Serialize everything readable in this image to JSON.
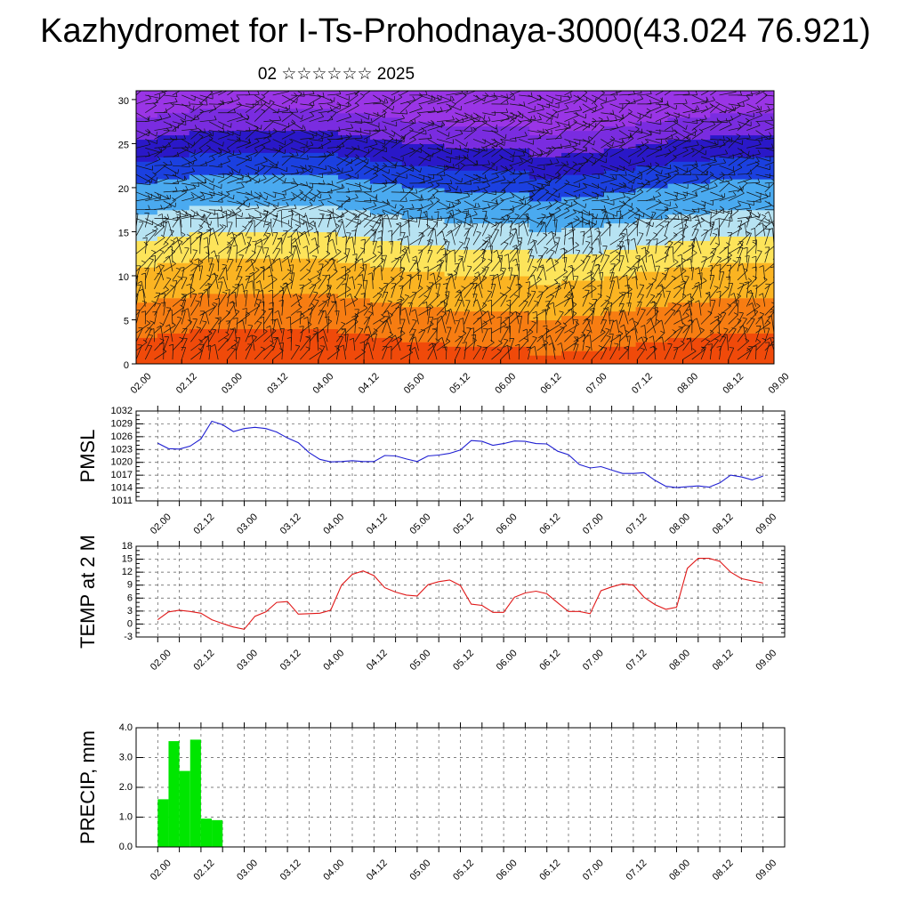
{
  "title": "Kazhydromet for I-Ts-Prohodnaya-3000(43.024 76.921)",
  "subtitle": "02 ☆☆☆☆☆☆ 2025",
  "x_tick_labels": [
    "02.00",
    "02.12",
    "03.00",
    "03.12",
    "04.00",
    "04.12",
    "05.00",
    "05.12",
    "06.00",
    "06.12",
    "07.00",
    "07.12",
    "08.00",
    "08.12",
    "09.00"
  ],
  "chart_data": [
    {
      "type": "heatmap",
      "title": "",
      "xlabel": "",
      "ylabel": "",
      "yticks": [
        0,
        5,
        10,
        15,
        20,
        25,
        30
      ],
      "ylim": [
        0,
        31
      ],
      "xlim": [
        0,
        168
      ],
      "x_unit": "hours from 02.00",
      "color_by_height_desc": "orange-red near ground, yellow to ~14 km, light blue to ~20 km, blue band ~22-25 km, violet above",
      "palette": [
        "#f04a0a",
        "#f77d12",
        "#fbb422",
        "#fde45a",
        "#b7e3f2",
        "#4aaaf0",
        "#1b40e0",
        "#2a18c8",
        "#7a2ce0",
        "#9a35e6"
      ],
      "wind_barbs": true
    },
    {
      "type": "line",
      "ylabel": "PMSL",
      "color": "#1f1fd2",
      "yticks": [
        1011,
        1014,
        1017,
        1020,
        1023,
        1026,
        1029,
        1032
      ],
      "ylim": [
        1011,
        1032
      ],
      "x": [
        0,
        3,
        6,
        9,
        12,
        15,
        18,
        21,
        24,
        27,
        30,
        33,
        36,
        39,
        42,
        45,
        48,
        51,
        54,
        57,
        60,
        63,
        66,
        69,
        72,
        75,
        78,
        81,
        84,
        87,
        90,
        93,
        96,
        99,
        102,
        105,
        108,
        111,
        114,
        117,
        120,
        123,
        126,
        129,
        132,
        135,
        138,
        141,
        144,
        147,
        150,
        153,
        156,
        159,
        162,
        165,
        168
      ],
      "values": [
        1024.5,
        1023.2,
        1023.1,
        1023.8,
        1025.5,
        1029.6,
        1028.8,
        1027.2,
        1027.9,
        1028.2,
        1027.9,
        1027.1,
        1025.7,
        1024.6,
        1022.3,
        1020.7,
        1020.1,
        1020.2,
        1020.4,
        1020.2,
        1020.2,
        1021.6,
        1021.5,
        1020.8,
        1020.2,
        1021.5,
        1021.7,
        1022.1,
        1022.9,
        1025.1,
        1024.9,
        1024.0,
        1024.4,
        1025.0,
        1024.9,
        1024.4,
        1024.3,
        1022.6,
        1021.8,
        1019.5,
        1018.7,
        1019.0,
        1018.2,
        1017.4,
        1017.4,
        1017.6,
        1015.8,
        1014.4,
        1014.1,
        1014.3,
        1014.5,
        1014.2,
        1015.2,
        1017.0,
        1016.6,
        1015.9,
        1016.8
      ]
    },
    {
      "type": "line",
      "ylabel": "TEMP at 2 M",
      "color": "#e01818",
      "yticks": [
        -3,
        0,
        3,
        6,
        9,
        12,
        15,
        18
      ],
      "ylim": [
        -3,
        18
      ],
      "x": [
        0,
        3,
        6,
        9,
        12,
        15,
        18,
        21,
        24,
        27,
        30,
        33,
        36,
        39,
        42,
        45,
        48,
        51,
        54,
        57,
        60,
        63,
        66,
        69,
        72,
        75,
        78,
        81,
        84,
        87,
        90,
        93,
        96,
        99,
        102,
        105,
        108,
        111,
        114,
        117,
        120,
        123,
        126,
        129,
        132,
        135,
        138,
        141,
        144,
        147,
        150,
        153,
        156,
        159,
        162,
        165,
        168
      ],
      "values": [
        1.0,
        2.8,
        3.2,
        2.9,
        2.5,
        1.0,
        0.1,
        -0.7,
        -1.2,
        1.8,
        2.8,
        5.0,
        5.2,
        2.3,
        2.4,
        2.5,
        3.2,
        9.0,
        11.5,
        12.3,
        11.2,
        8.4,
        7.4,
        6.7,
        6.5,
        9.1,
        9.8,
        10.2,
        8.9,
        4.6,
        4.3,
        2.7,
        2.7,
        6.2,
        7.2,
        7.6,
        7.0,
        4.9,
        2.9,
        2.9,
        2.4,
        7.7,
        8.6,
        9.3,
        9.0,
        6.2,
        4.5,
        3.4,
        3.9,
        12.9,
        15.2,
        15.2,
        14.5,
        12.0,
        10.5,
        10.0,
        9.5
      ]
    },
    {
      "type": "bar",
      "ylabel": "PRECIP, mm",
      "color": "#00e600",
      "yticks": [
        "0.0",
        "1.0",
        "2.0",
        "3.0",
        "4.0"
      ],
      "ylim": [
        0,
        4
      ],
      "x": [
        3,
        6,
        9,
        12,
        15,
        18,
        21,
        24,
        27,
        30,
        33,
        36,
        39,
        42,
        45,
        48,
        51,
        54,
        57,
        60,
        63,
        66,
        69,
        72,
        75,
        78,
        81,
        84,
        87,
        90,
        93,
        96,
        99,
        102,
        105,
        108,
        111,
        114,
        117,
        120,
        123,
        126,
        129,
        132,
        135,
        138,
        141,
        144,
        147,
        150,
        153,
        156,
        159,
        162,
        165,
        168
      ],
      "values": [
        1.6,
        3.55,
        2.55,
        3.6,
        0.95,
        0.9,
        0,
        0,
        0,
        0,
        0,
        0,
        0,
        0,
        0,
        0,
        0,
        0,
        0,
        0,
        0,
        0,
        0,
        0,
        0,
        0,
        0,
        0,
        0,
        0,
        0,
        0,
        0,
        0,
        0,
        0,
        0,
        0,
        0,
        0,
        0,
        0,
        0,
        0,
        0,
        0,
        0,
        0,
        0,
        0,
        0,
        0,
        0,
        0,
        0,
        0
      ]
    }
  ]
}
